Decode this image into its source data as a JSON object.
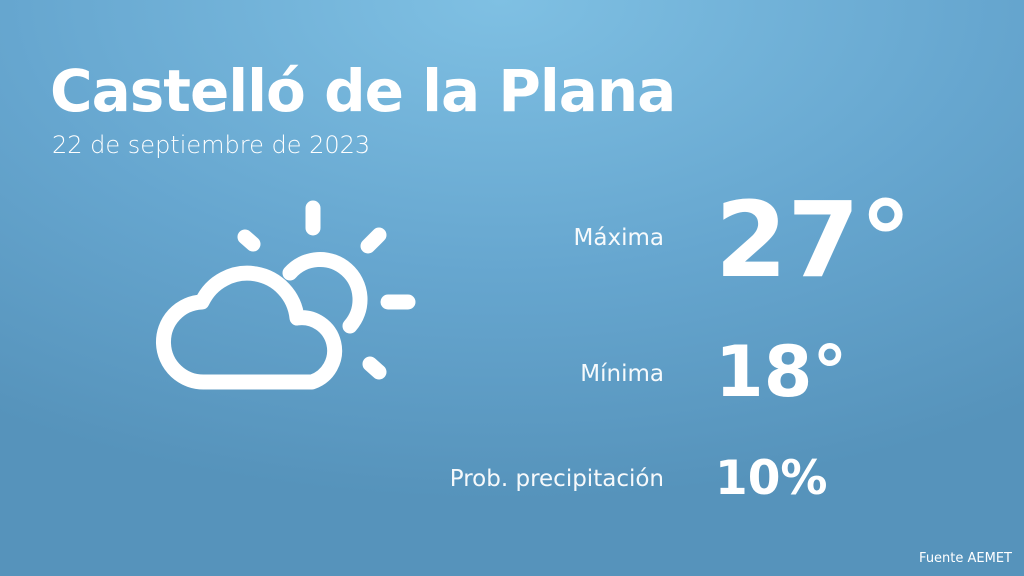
{
  "city": "Castelló de la Plana",
  "date": "22 de septiembre de 2023",
  "icon": "partly-cloudy-icon",
  "stats": {
    "max_label": "Máxima",
    "max_value": "27°",
    "min_label": "Mínima",
    "min_value": "18°",
    "precip_label": "Prob. precipitación",
    "precip_value": "10%"
  },
  "footer": "Fuente AEMET",
  "colors": {
    "background_top": "#7fc0e3",
    "background_bottom": "#5693bb",
    "text": "#ffffff"
  }
}
